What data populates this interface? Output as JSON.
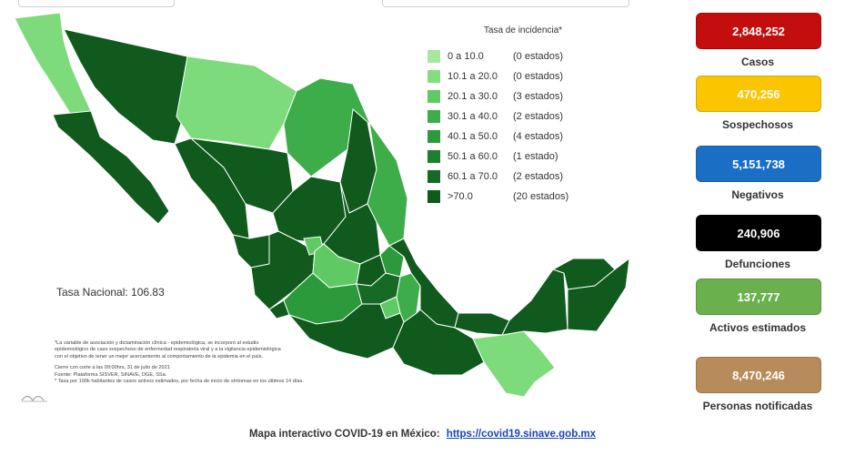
{
  "map": {
    "legend_title": "Tasa de incidencia*",
    "legend": [
      {
        "range": "0   a  10.0",
        "count": "(0 estados)",
        "color": "#a6e8a0"
      },
      {
        "range": "10.1  a  20.0",
        "count": "(0 estados)",
        "color": "#86dd80"
      },
      {
        "range": "20.1  a  30.0",
        "count": "(3 estados)",
        "color": "#5fc964"
      },
      {
        "range": "30.1  a  40.0",
        "count": "(2 estados)",
        "color": "#3cad48"
      },
      {
        "range": "40.1  a  50.0",
        "count": "(4 estados)",
        "color": "#2a9a3a"
      },
      {
        "range": "50.1  a  60.0",
        "count": "(1 estado)",
        "color": "#1f7f2e"
      },
      {
        "range": "60.1  a  70.0",
        "count": "(2 estados)",
        "color": "#176a25"
      },
      {
        "range": ">70.0",
        "count": "(20 estados)",
        "color": "#0f5a1c"
      }
    ],
    "tasa_nacional": "Tasa Nacional: 106.83",
    "notes": [
      "*La variable de asociación y dictaminación clínica - epidemiológica, se incorporó al estudio",
      "epidemiológico de caso sospechoso de enfermedad respiratoria viral y a la vigilancia epidemiológica",
      "con el objetivo de tener un mejor acercamiento al comportamiento de la epidemia en el país."
    ],
    "notes2": [
      "Cierre con corte a las 09:00hrs, 31 de julio de 2021",
      "Fuente: Plataforma SISVER, SINAVE, DGE, SSa.",
      "* Tasa por 100k habitantes de casos activos estimados, por fecha de inicio de síntomas en los últimos 14 días."
    ]
  },
  "stats": [
    {
      "value": "2,848,252",
      "label": "Casos",
      "color": "#c40d0d"
    },
    {
      "value": "470,256",
      "label": "Sospechosos",
      "color": "#fbc600"
    },
    {
      "value": "5,151,738",
      "label": "Negativos",
      "color": "#1a6fc4"
    },
    {
      "value": "240,906",
      "label": "Defunciones",
      "color": "#000000"
    },
    {
      "value": "137,777",
      "label": "Activos estimados",
      "color": "#6ab04c"
    },
    {
      "value": "8,470,246",
      "label": "Personas notificadas",
      "color": "#b78c5a"
    }
  ],
  "footer": {
    "text": "Mapa interactivo COVID-19 en México:",
    "link": "https://covid19.sinave.gob.mx"
  }
}
